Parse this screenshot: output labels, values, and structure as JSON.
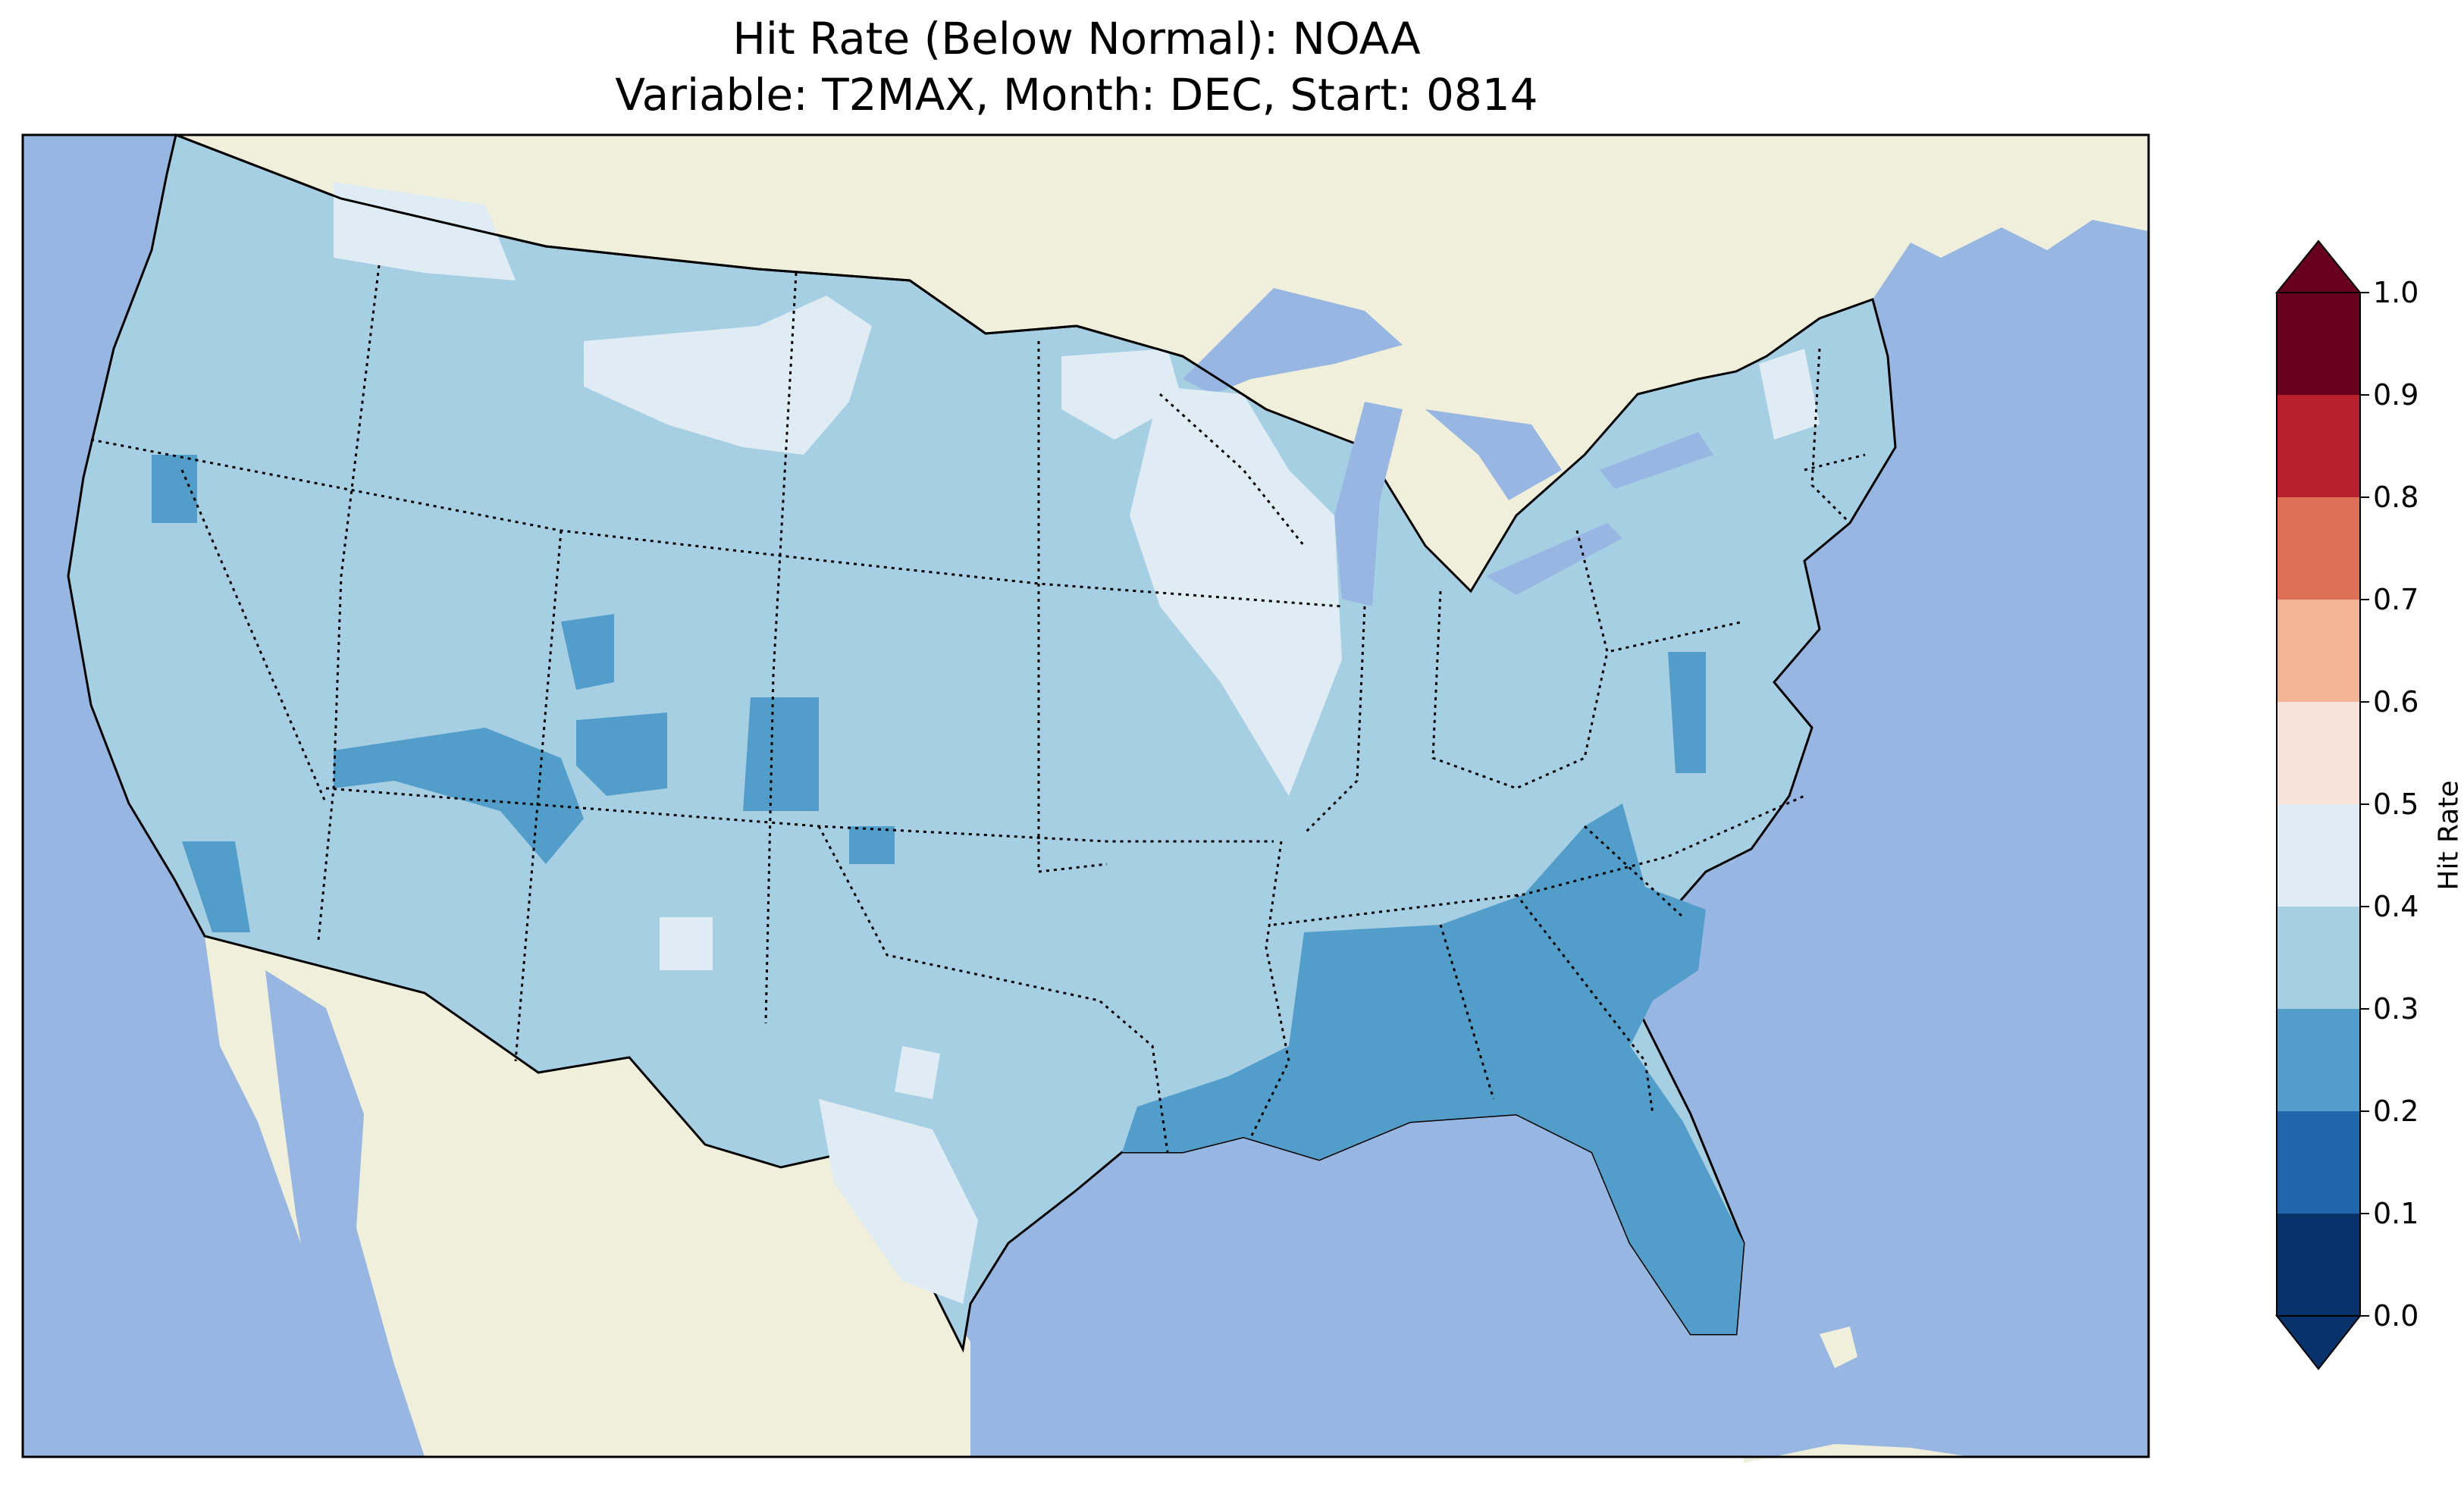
{
  "title": {
    "line1": "Hit Rate (Below Normal): NOAA",
    "line2": "Variable: T2MAX, Month: DEC, Start: 0814"
  },
  "colors": {
    "ocean": "#97b6e1",
    "land": "#efefdc",
    "bin_0_0_1": "#08326a",
    "bin_0_1_0_2": "#2166ac",
    "bin_0_2_0_3": "#529dc9",
    "bin_0_3_0_4": "#a6cfe4",
    "bin_0_4_0_5": "#e0ecf4",
    "bin_0_5_0_6": "#f7e3da",
    "bin_0_6_0_7": "#f4b596",
    "bin_0_7_0_8": "#dd6f57",
    "bin_0_8_0_9": "#b8202c",
    "bin_0_9_1_0": "#67001f"
  },
  "colorbar": {
    "label": "Hit Rate",
    "ticks": [
      "0.0",
      "0.1",
      "0.2",
      "0.3",
      "0.4",
      "0.5",
      "0.6",
      "0.7",
      "0.8",
      "0.9",
      "1.0"
    ],
    "extend": "both",
    "range": [
      0.0,
      1.0
    ]
  },
  "map": {
    "region": "Contiguous United States",
    "dominant_bin": "0.3-0.4",
    "regions": [
      {
        "name": "Southeast (GA, AL, FL, Gulf coast)",
        "bin": "0.2-0.3"
      },
      {
        "name": "Colorado / Utah mountains",
        "bin": "0.2-0.3"
      },
      {
        "name": "Montana / Wyoming north",
        "bin": "0.4-0.5"
      },
      {
        "name": "Upper Midwest (WI, IL)",
        "bin": "0.4-0.5"
      },
      {
        "name": "South Texas",
        "bin": "0.4-0.5"
      },
      {
        "name": "Northern New England",
        "bin": "0.4-0.5"
      }
    ]
  }
}
